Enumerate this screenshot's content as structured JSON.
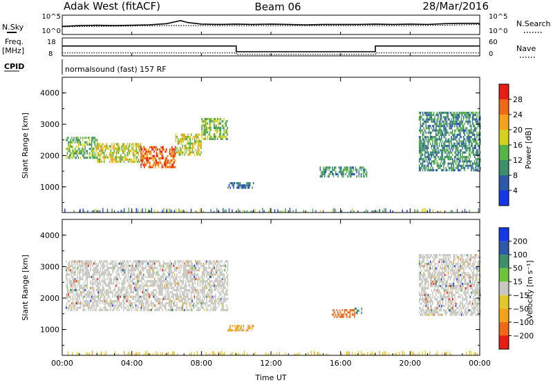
{
  "header": {
    "station": "Adak West (fitACF)",
    "beam": "Beam 06",
    "date": "28/Mar/2016"
  },
  "strip": {
    "nsky_label": "N.Sky",
    "nsky_ticks": [
      "10^5",
      "10^0"
    ],
    "nsearch_label": "N.Search",
    "nsearch_ticks": [
      "10^5",
      "10^0"
    ],
    "freq_label_1": "Freq.",
    "freq_label_2": "[MHz]",
    "freq_ticks": [
      "18",
      "8"
    ],
    "nave_label": "Nave",
    "nave_ticks": [
      "60",
      "0"
    ],
    "cpid_label": "CPID",
    "cpid_text": "normalsound (fast) 157 RF"
  },
  "colors": {
    "power": [
      "#1438e6",
      "#2e58a8",
      "#3d8f6a",
      "#56b34a",
      "#d6d11e",
      "#f3a21c",
      "#ee6a18",
      "#e61e16"
    ],
    "velocity": [
      "#e61e16",
      "#ee6a18",
      "#f3a21c",
      "#e3c82a",
      "#c8c8c0",
      "#6dc33a",
      "#3d8f6a",
      "#2e58a8",
      "#1438e6"
    ],
    "ground_scatter": "#c8c8c0"
  },
  "chart_data": [
    {
      "type": "line",
      "panel": "noise-and-search",
      "series": [
        {
          "name": "N.Sky",
          "x": [
            0,
            1,
            2,
            3,
            4,
            5,
            6,
            6.8,
            7.2,
            8,
            9,
            10,
            11,
            12,
            13,
            14,
            15,
            16,
            17,
            18,
            19,
            20,
            21,
            22,
            23,
            24
          ],
          "values": [
            2.1,
            2.3,
            2.4,
            2.3,
            2.4,
            2.5,
            2.8,
            3.6,
            3.1,
            2.7,
            2.6,
            2.7,
            2.6,
            2.7,
            2.6,
            2.5,
            2.6,
            2.6,
            2.6,
            2.7,
            2.6,
            2.7,
            2.6,
            2.8,
            2.9,
            2.9
          ]
        },
        {
          "name": "N.Search",
          "x": [
            0,
            2,
            4,
            6,
            8,
            10,
            12,
            14,
            16,
            18,
            20,
            22,
            24
          ],
          "values": [
            2.0,
            2.1,
            2.2,
            2.3,
            2.3,
            2.3,
            2.3,
            2.3,
            2.3,
            2.3,
            2.3,
            2.4,
            2.6
          ]
        }
      ],
      "xlim": [
        0,
        24
      ],
      "ylim": [
        0,
        5
      ]
    },
    {
      "type": "line",
      "panel": "frequency-and-nave",
      "series": [
        {
          "name": "Freq.",
          "x": [
            0,
            10,
            10,
            18,
            18,
            24
          ],
          "values": [
            13.5,
            13.5,
            10.3,
            10.3,
            13.5,
            13.5
          ]
        },
        {
          "name": "Nave",
          "x": [
            0,
            10,
            10,
            18,
            18,
            24
          ],
          "values": [
            10,
            10,
            5,
            5,
            10,
            10
          ]
        }
      ],
      "xlim": [
        0,
        24
      ],
      "freq_lim": [
        8,
        18
      ],
      "nave_lim": [
        0,
        60
      ]
    },
    {
      "type": "heatmap",
      "panel": "power",
      "ylabel": "Slant Range [km]",
      "xlim": [
        0,
        24
      ],
      "ylim": [
        180,
        4500
      ],
      "yticks": [
        "4000",
        "3000",
        "2000",
        "1000"
      ],
      "colorbar_label": "Power [dB]",
      "colorbar_ticks": [
        "28",
        "24",
        "20",
        "16",
        "12",
        "8",
        "4"
      ],
      "regions": [
        {
          "t": [
            0.2,
            2.0
          ],
          "r": [
            1900,
            2600
          ],
          "p": 12
        },
        {
          "t": [
            2.0,
            4.5
          ],
          "r": [
            1800,
            2400
          ],
          "p": 18
        },
        {
          "t": [
            4.5,
            6.5
          ],
          "r": [
            1600,
            2300
          ],
          "p": 26
        },
        {
          "t": [
            6.5,
            8.0
          ],
          "r": [
            2000,
            2700
          ],
          "p": 16
        },
        {
          "t": [
            8.0,
            9.5
          ],
          "r": [
            2500,
            3200
          ],
          "p": 14
        },
        {
          "t": [
            9.5,
            11.0
          ],
          "r": [
            950,
            1150
          ],
          "p": 7
        },
        {
          "t": [
            14.8,
            17.5
          ],
          "r": [
            1350,
            1650
          ],
          "p": 9
        },
        {
          "t": [
            20.5,
            24.0
          ],
          "r": [
            1500,
            3400
          ],
          "p": 11
        }
      ]
    },
    {
      "type": "heatmap",
      "panel": "velocity",
      "ylabel": "Slant Range [km]",
      "xlabel": "Time UT",
      "xlim": [
        0,
        24
      ],
      "ylim": [
        180,
        4500
      ],
      "yticks": [
        "4000",
        "3000",
        "2000",
        "1000"
      ],
      "xticks": [
        "00:00",
        "04:00",
        "08:00",
        "12:00",
        "16:00",
        "20:00",
        "00:00"
      ],
      "colorbar_label": "Velocity [m s⁻¹]",
      "colorbar_ticks": [
        "200",
        "100",
        "50",
        "15",
        "−15",
        "−50",
        "−100",
        "−200"
      ],
      "regions": [
        {
          "t": [
            0.2,
            9.5
          ],
          "r": [
            1600,
            3200
          ],
          "v": 0
        },
        {
          "t": [
            9.5,
            11.0
          ],
          "r": [
            950,
            1150
          ],
          "v": -40
        },
        {
          "t": [
            15.5,
            16.8
          ],
          "r": [
            1400,
            1650
          ],
          "v": -60
        },
        {
          "t": [
            16.8,
            17.2
          ],
          "r": [
            1550,
            1700
          ],
          "v": 60
        },
        {
          "t": [
            20.5,
            24.0
          ],
          "r": [
            1500,
            3400
          ],
          "v": 0
        }
      ]
    }
  ]
}
